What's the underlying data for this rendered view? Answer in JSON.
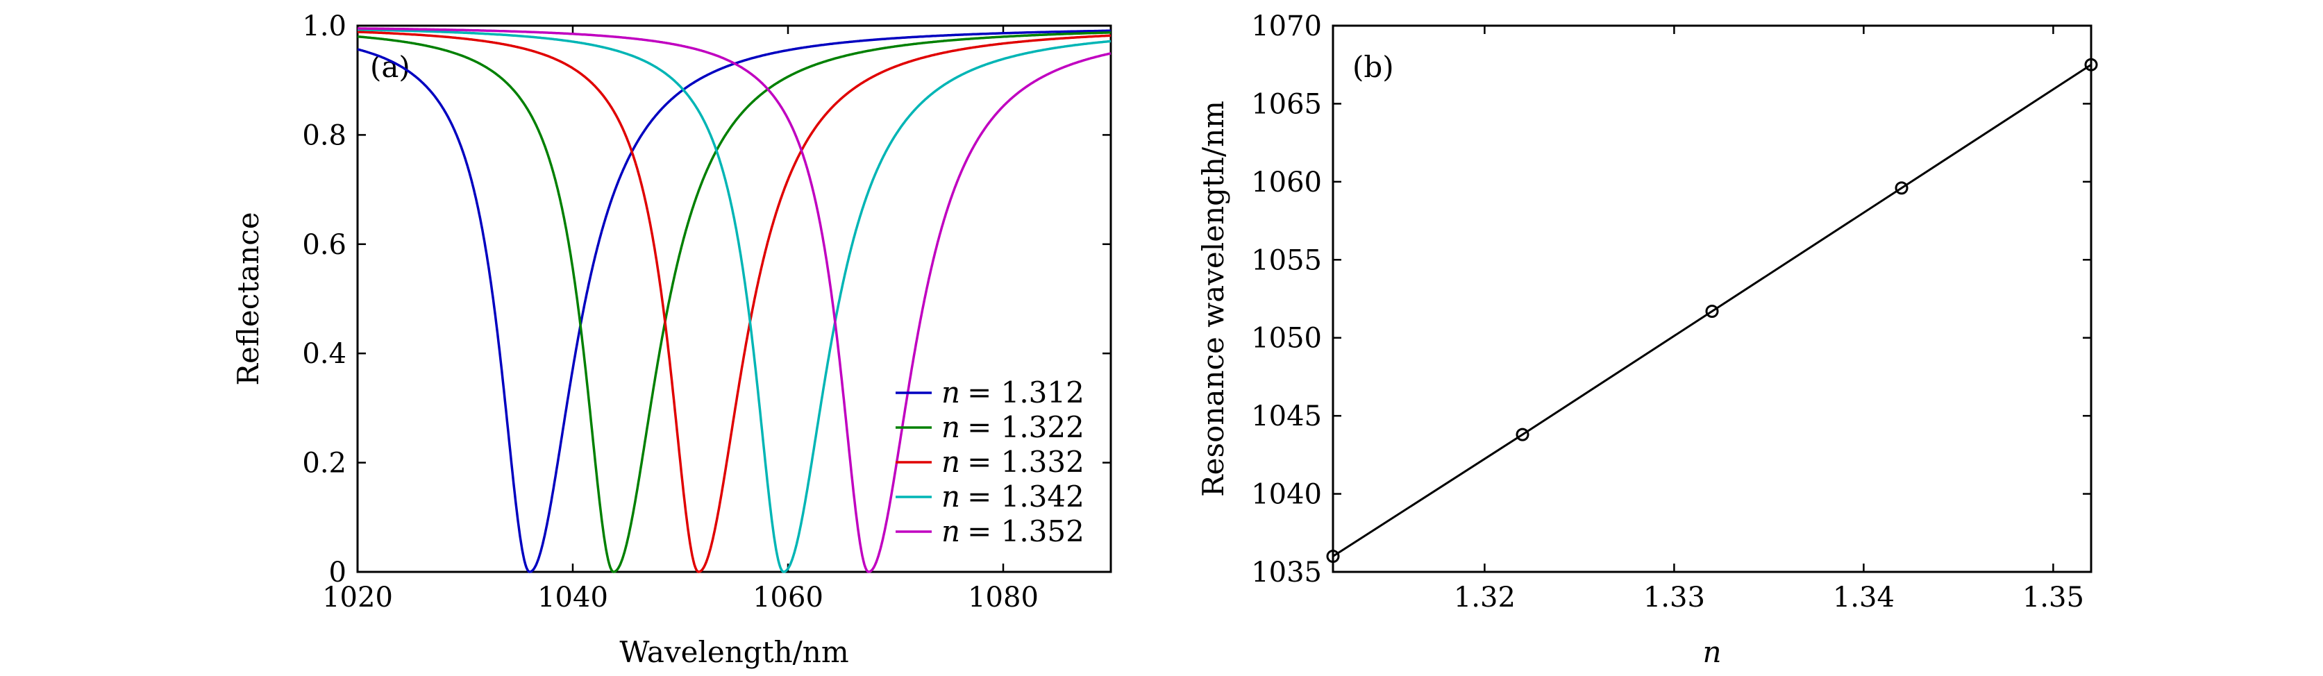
{
  "chart_data": [
    {
      "panel": "(a)",
      "type": "line",
      "xlabel": "Wavelength/nm",
      "ylabel": "Reflectance",
      "xlim": [
        1020,
        1090
      ],
      "ylim": [
        0,
        1.0
      ],
      "xticks": [
        1020,
        1040,
        1060,
        1080
      ],
      "xtick_labels": [
        "1020",
        "1040",
        "1060",
        "1080"
      ],
      "yticks": [
        0,
        0.2,
        0.4,
        0.6,
        0.8,
        1.0
      ],
      "ytick_labels": [
        "0",
        "0.2",
        "0.4",
        "0.6",
        "0.8",
        "1.0"
      ],
      "legend_position": "bottom-right",
      "series": [
        {
          "name": "n = 1.312",
          "symbol": "n",
          "value_text": "= 1.312",
          "color": "#0000c0",
          "resonance": 1036.0
        },
        {
          "name": "n = 1.322",
          "symbol": "n",
          "value_text": "= 1.322",
          "color": "#008000",
          "resonance": 1043.8
        },
        {
          "name": "n = 1.332",
          "symbol": "n",
          "value_text": "= 1.332",
          "color": "#e00000",
          "resonance": 1051.7
        },
        {
          "name": "n = 1.342",
          "symbol": "n",
          "value_text": "= 1.342",
          "color": "#00b5b5",
          "resonance": 1059.6
        },
        {
          "name": "n = 1.352",
          "symbol": "n",
          "value_text": "= 1.352",
          "color": "#c000c0",
          "resonance": 1067.5
        }
      ],
      "curve_shape": {
        "dip_depth": 1.0,
        "left_width_nm": 3.4,
        "right_width_nm": 5.2
      }
    },
    {
      "panel": "(b)",
      "type": "line",
      "xlabel": "n",
      "ylabel": "Resonance wavelength/nm",
      "xlim": [
        1.312,
        1.352
      ],
      "ylim": [
        1035,
        1070
      ],
      "xticks": [
        1.32,
        1.33,
        1.34,
        1.35
      ],
      "xtick_labels": [
        "1.32",
        "1.33",
        "1.34",
        "1.35"
      ],
      "yticks": [
        1035,
        1040,
        1045,
        1050,
        1055,
        1060,
        1065,
        1070
      ],
      "ytick_labels": [
        "1035",
        "1040",
        "1045",
        "1050",
        "1055",
        "1060",
        "1065",
        "1070"
      ],
      "x": [
        1.312,
        1.322,
        1.332,
        1.342,
        1.352
      ],
      "y": [
        1036.0,
        1043.8,
        1051.7,
        1059.6,
        1067.5
      ],
      "markers": "open-circle"
    }
  ]
}
